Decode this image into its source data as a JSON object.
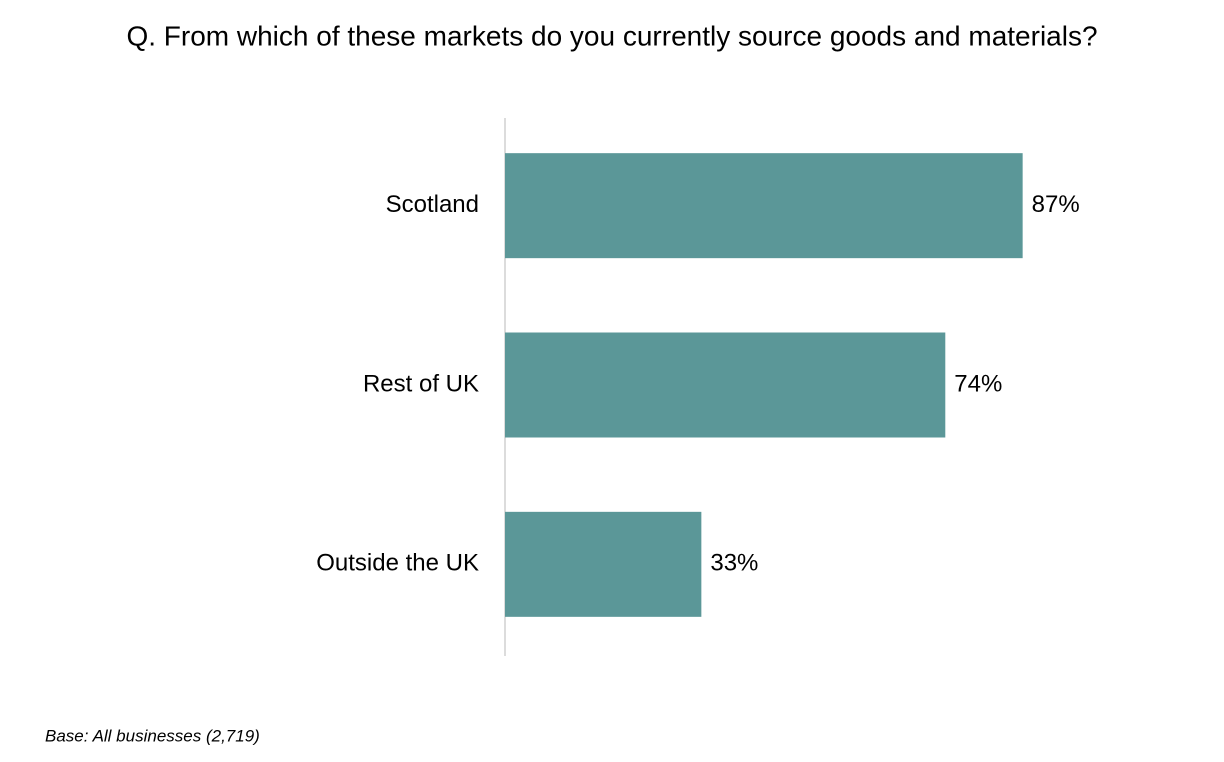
{
  "chart_data": {
    "type": "bar",
    "orientation": "horizontal",
    "title": "Q. From which of these markets do you currently source goods and materials?",
    "categories": [
      "Scotland",
      "Rest of UK",
      "Outside the UK"
    ],
    "values": [
      87,
      74,
      33
    ],
    "value_labels": [
      "87%",
      "74%",
      "33%"
    ],
    "color": "#5b9798",
    "xlim": [
      0,
      100
    ],
    "footnote": "Base: All businesses (2,719)"
  }
}
